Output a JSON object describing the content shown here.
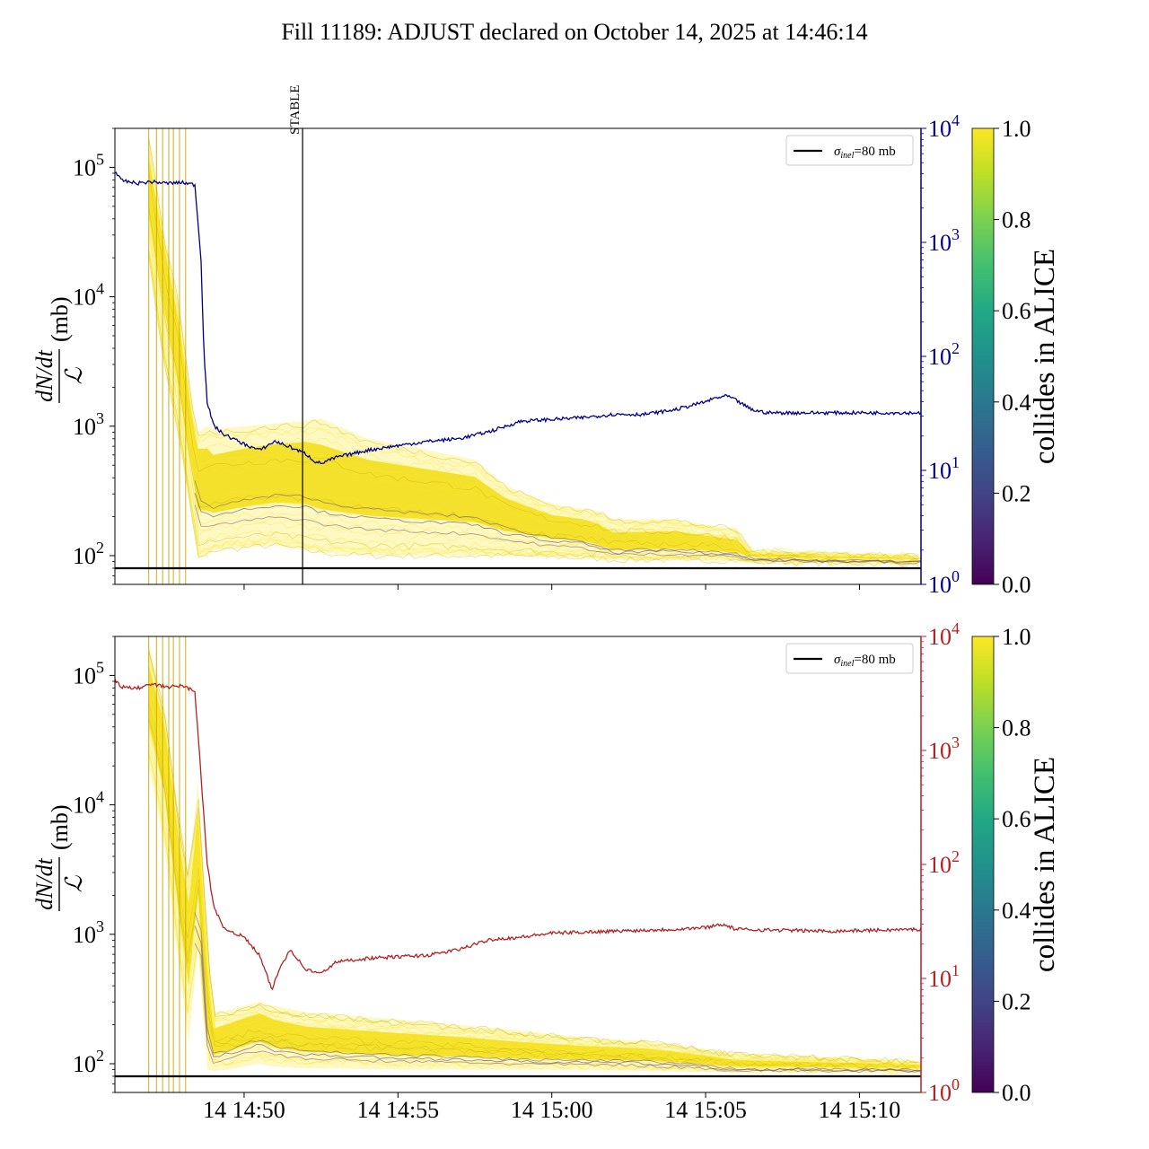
{
  "title": "Fill 11189: ADJUST declared on October 14, 2025 at 14:46:14",
  "chart_data": [
    {
      "type": "line",
      "panel": "top",
      "ylabel_fraction_num": "dN/dt",
      "ylabel_fraction_den": "ℒ",
      "ylabel_unit": "(mb)",
      "yscale": "log",
      "ylim": [
        60,
        200000
      ],
      "y_ticks": [
        {
          "base": "10",
          "exp": "2"
        },
        {
          "base": "10",
          "exp": "3"
        },
        {
          "base": "10",
          "exp": "4"
        },
        {
          "base": "10",
          "exp": "5"
        }
      ],
      "y2scale": "log",
      "y2lim": [
        1,
        10000
      ],
      "y2_ticks": [
        {
          "base": "10",
          "exp": "0"
        },
        {
          "base": "10",
          "exp": "1"
        },
        {
          "base": "10",
          "exp": "2"
        },
        {
          "base": "10",
          "exp": "3"
        },
        {
          "base": "10",
          "exp": "4"
        }
      ],
      "y2_color": "#00008b",
      "xlim_minutes_after_14_45": [
        0.8,
        27.0
      ],
      "annotation": {
        "label": "STABLE",
        "x_minutes_after_14_45": 6.9
      },
      "reference_line": {
        "y": 80,
        "legend": "σinel=80 mb",
        "legend_sigma": "σ",
        "legend_sub": "inel",
        "legend_rest": "=80 mb"
      },
      "envelope": {
        "x": [
          1.9,
          2.4,
          2.9,
          3.3,
          3.5,
          3.8,
          4.0,
          5.0,
          6.0,
          7.0,
          7.5,
          9.0,
          11.0,
          12.5,
          13.5,
          15.0,
          16.0,
          16.5,
          17.0,
          19.0,
          21.0,
          21.5,
          24.0,
          27.0
        ],
        "upper": [
          180000,
          30000,
          9000,
          1500,
          900,
          1000,
          950,
          1000,
          1050,
          1100,
          1150,
          800,
          650,
          550,
          350,
          250,
          230,
          220,
          190,
          190,
          160,
          110,
          105,
          100
        ],
        "mid": [
          80000,
          20000,
          4000,
          1000,
          500,
          450,
          380,
          450,
          500,
          520,
          450,
          380,
          330,
          300,
          220,
          170,
          160,
          140,
          120,
          125,
          110,
          98,
          94,
          92
        ],
        "lower": [
          20000,
          3000,
          800,
          200,
          95,
          100,
          110,
          115,
          120,
          110,
          105,
          100,
          100,
          100,
          100,
          98,
          96,
          95,
          93,
          93,
          92,
          90,
          88,
          87
        ]
      },
      "series_secondary": {
        "name": "luminosity (right axis)",
        "x": [
          0.8,
          1.0,
          1.5,
          2.0,
          2.5,
          3.0,
          3.4,
          3.6,
          3.7,
          3.8,
          4.0,
          4.3,
          5.0,
          5.5,
          6.0,
          6.5,
          7.0,
          7.3,
          7.5,
          8.0,
          9.0,
          10.0,
          11.0,
          12.0,
          13.0,
          14.0,
          15.0,
          16.0,
          16.5,
          17.0,
          18.0,
          19.0,
          20.0,
          20.3,
          20.7,
          21.0,
          21.5,
          22.0,
          24.0,
          27.0
        ],
        "values": [
          4200,
          3500,
          3300,
          3400,
          3300,
          3350,
          3200,
          700,
          100,
          40,
          25,
          21,
          17,
          15,
          18,
          16,
          14,
          12,
          11.5,
          13,
          15,
          16.5,
          18,
          19,
          22,
          27,
          28,
          29,
          30,
          31,
          31,
          34,
          40,
          43,
          45,
          41,
          34,
          32,
          32,
          32
        ]
      }
    },
    {
      "type": "line",
      "panel": "bottom",
      "ylabel_fraction_num": "dN/dt",
      "ylabel_fraction_den": "ℒ",
      "ylabel_unit": "(mb)",
      "yscale": "log",
      "ylim": [
        60,
        200000
      ],
      "y_ticks": [
        {
          "base": "10",
          "exp": "2"
        },
        {
          "base": "10",
          "exp": "3"
        },
        {
          "base": "10",
          "exp": "4"
        },
        {
          "base": "10",
          "exp": "5"
        }
      ],
      "y2scale": "log",
      "y2lim": [
        1,
        10000
      ],
      "y2_ticks": [
        {
          "base": "10",
          "exp": "0"
        },
        {
          "base": "10",
          "exp": "1"
        },
        {
          "base": "10",
          "exp": "2"
        },
        {
          "base": "10",
          "exp": "3"
        },
        {
          "base": "10",
          "exp": "4"
        }
      ],
      "y2_color": "#b22222",
      "xlim_minutes_after_14_45": [
        0.8,
        27.0
      ],
      "x_ticks": [
        {
          "label": "14 14:50",
          "x": 5
        },
        {
          "label": "14 14:55",
          "x": 10
        },
        {
          "label": "14 15:00",
          "x": 15
        },
        {
          "label": "14 15:05",
          "x": 20
        },
        {
          "label": "14 15:10",
          "x": 25
        }
      ],
      "reference_line": {
        "y": 80,
        "legend": "σinel=80 mb",
        "legend_sigma": "σ",
        "legend_sub": "inel",
        "legend_rest": "=80 mb"
      },
      "envelope": {
        "x": [
          1.9,
          2.4,
          2.9,
          3.2,
          3.5,
          3.8,
          4.0,
          4.5,
          5.0,
          5.5,
          6.0,
          7.0,
          8.0,
          10.0,
          12.0,
          13.0,
          14.0,
          16.0,
          18.0,
          19.0,
          21.0,
          27.0
        ],
        "upper": [
          180000,
          60000,
          8000,
          3000,
          15000,
          1000,
          250,
          260,
          280,
          300,
          280,
          250,
          240,
          220,
          200,
          190,
          180,
          160,
          150,
          140,
          120,
          105
        ],
        "mid": [
          80000,
          30000,
          3000,
          1000,
          5000,
          300,
          140,
          160,
          180,
          200,
          170,
          150,
          145,
          135,
          130,
          125,
          120,
          118,
          115,
          110,
          95,
          92
        ],
        "lower": [
          20000,
          5000,
          500,
          150,
          800,
          90,
          88,
          90,
          95,
          100,
          95,
          92,
          92,
          90,
          90,
          90,
          90,
          89,
          88,
          87,
          86,
          85
        ]
      },
      "series_secondary": {
        "name": "luminosity (right axis)",
        "x": [
          0.8,
          1.0,
          1.5,
          2.0,
          2.5,
          3.0,
          3.4,
          3.6,
          3.8,
          4.0,
          4.3,
          5.0,
          5.5,
          5.9,
          6.2,
          6.5,
          7.0,
          7.5,
          8.0,
          9.0,
          10.0,
          11.0,
          12.0,
          13.0,
          14.0,
          15.0,
          17.0,
          19.0,
          20.0,
          20.5,
          21.0,
          24.0,
          27.0
        ],
        "values": [
          4200,
          3600,
          3500,
          3800,
          3600,
          3700,
          3300,
          600,
          100,
          45,
          28,
          23,
          16,
          8,
          13,
          18,
          12,
          11,
          14,
          15,
          15.5,
          16,
          18,
          22,
          23,
          25,
          26,
          27,
          28,
          30,
          27,
          26,
          27
        ]
      }
    }
  ],
  "colorbar": {
    "label": "collides in ALICE",
    "ticks": [
      "0.0",
      "0.2",
      "0.4",
      "0.6",
      "0.8",
      "1.0"
    ],
    "colormap": "viridis"
  }
}
